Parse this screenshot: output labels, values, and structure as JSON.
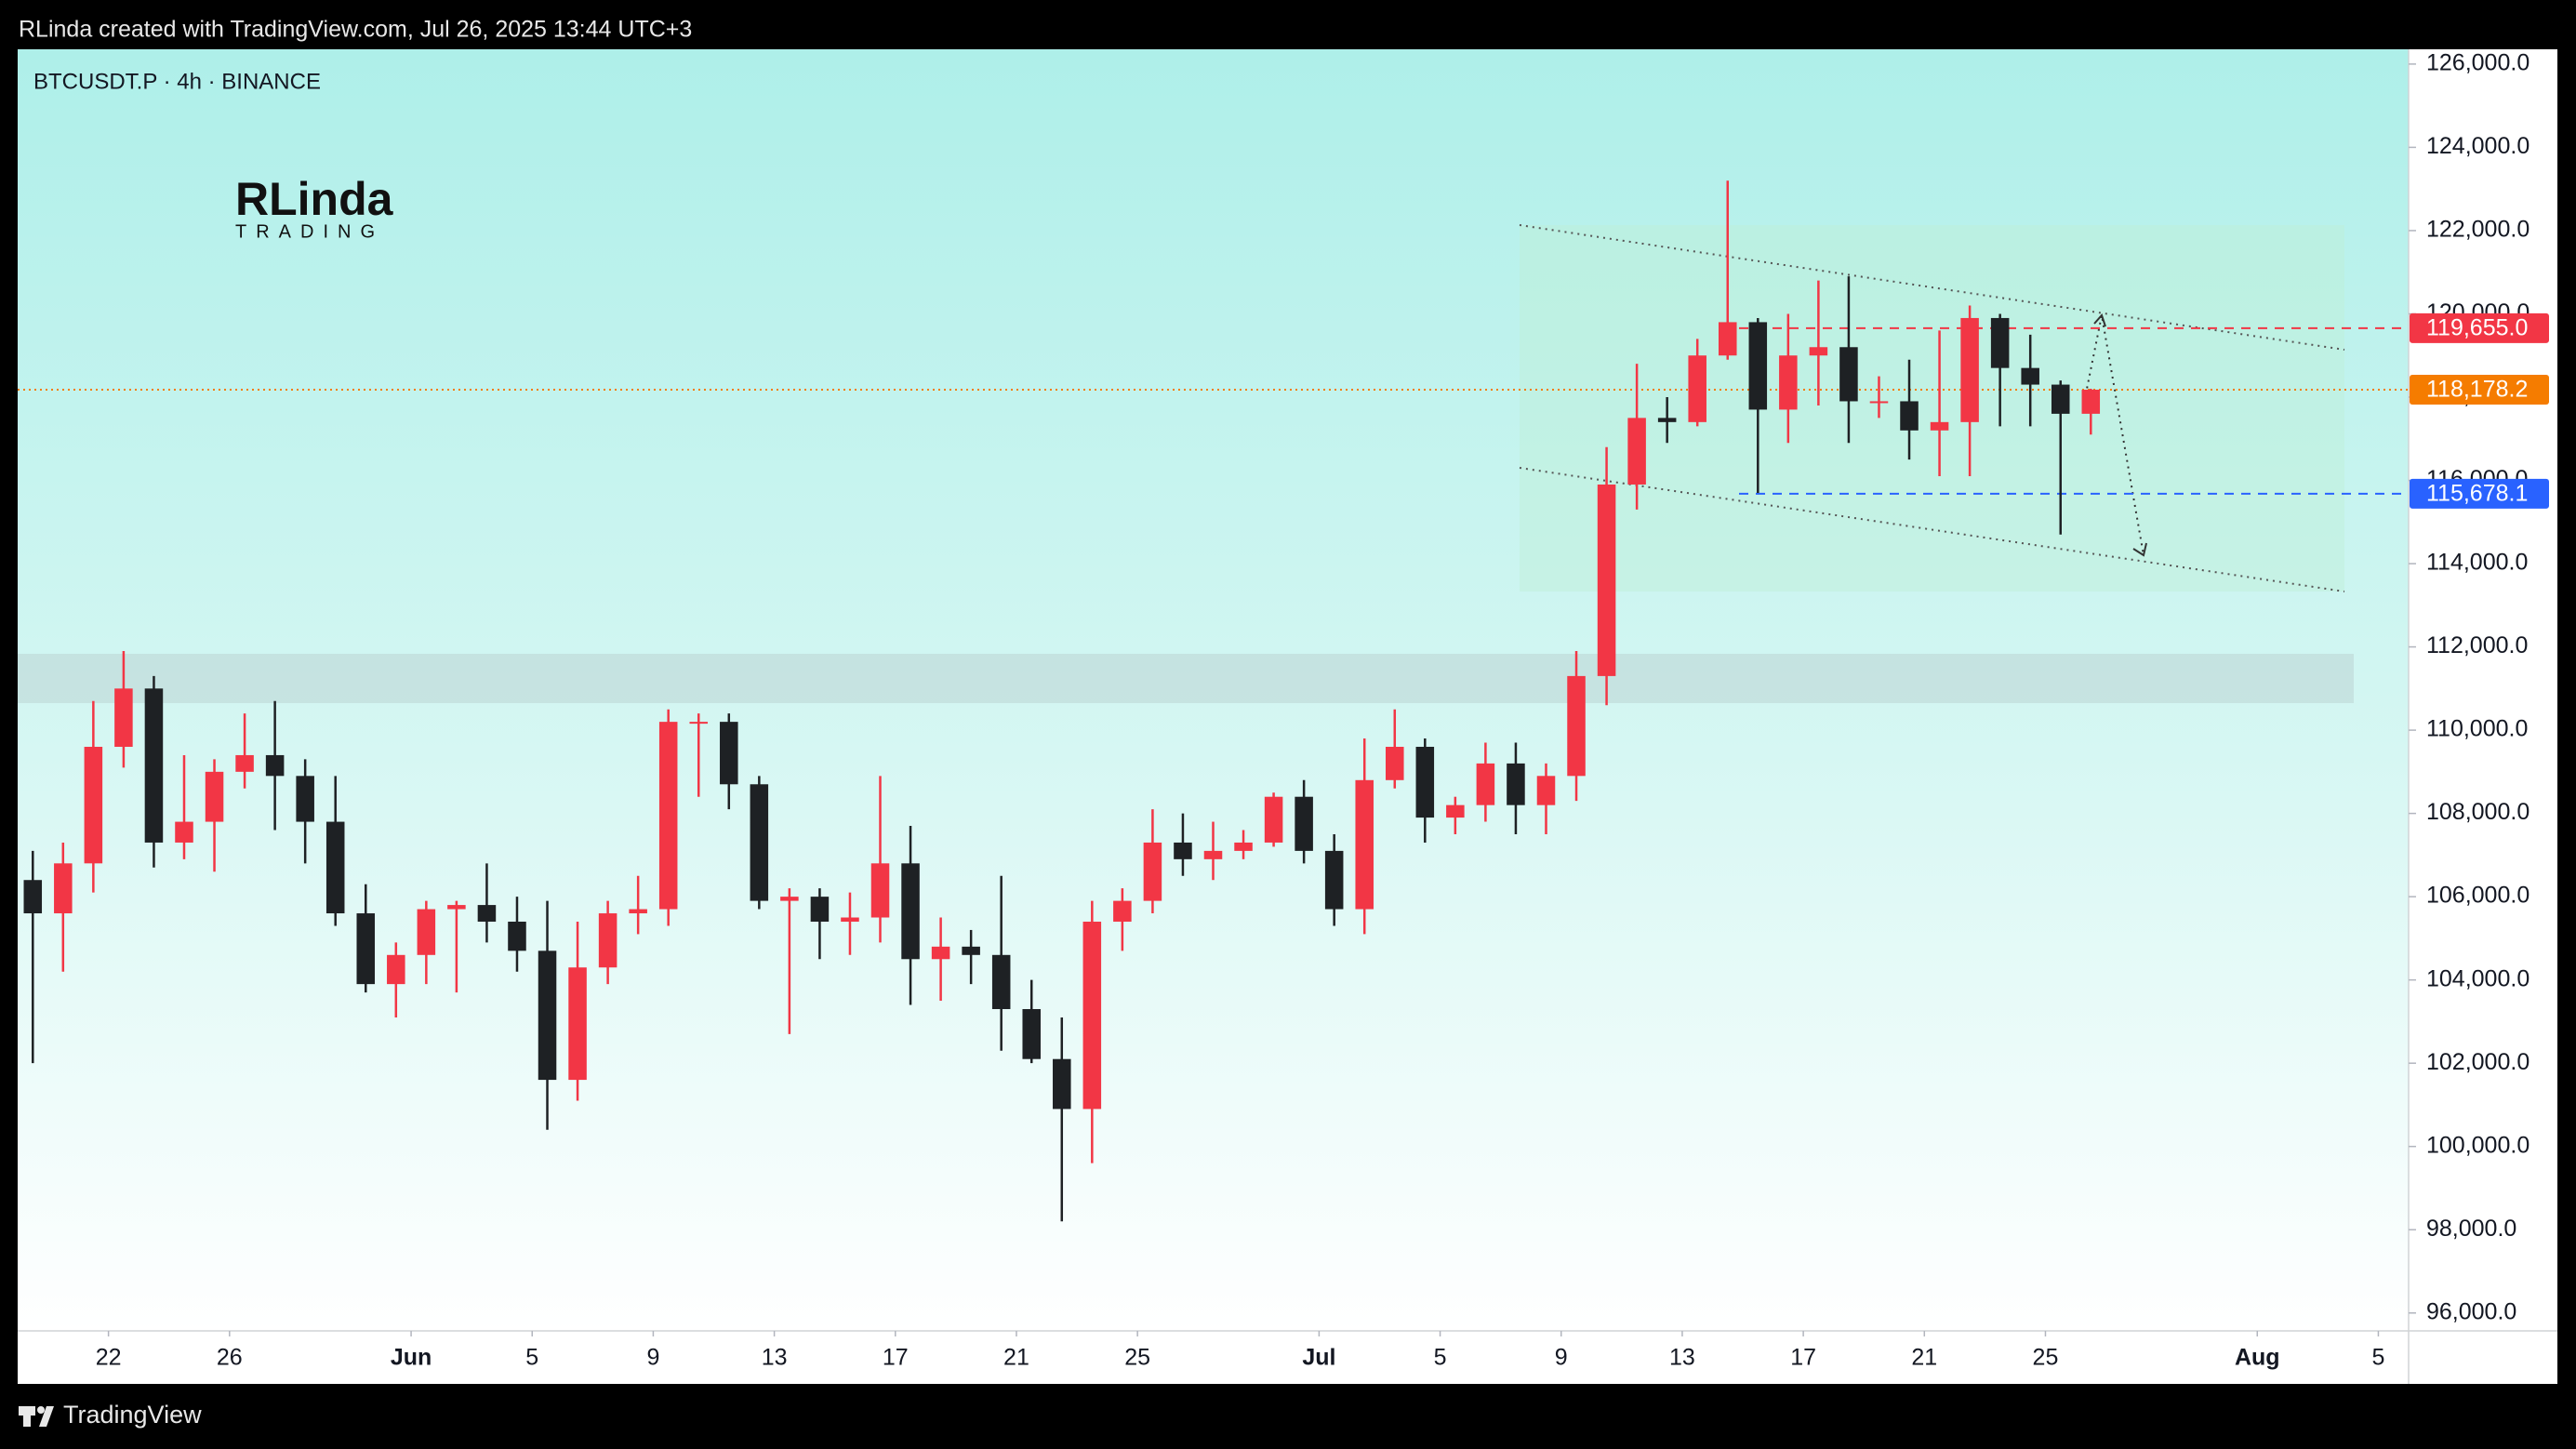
{
  "header": {
    "text": "RLinda created with TradingView.com, Jul 26, 2025 13:44 UTC+3"
  },
  "footer": {
    "brand": "TradingView"
  },
  "logo": {
    "name": "RLinda",
    "tagline": "TRADING"
  },
  "chart_data": {
    "type": "candlestick",
    "title": "BTCUSDT.P · 4h · BINANCE",
    "up_color": "#f23645",
    "down_color": "#1e2124",
    "grid": false,
    "x": [
      "2025-05-19",
      "2025-05-20",
      "2025-05-21",
      "2025-05-22",
      "2025-05-23",
      "2025-05-24",
      "2025-05-25",
      "2025-05-26",
      "2025-05-27",
      "2025-05-28",
      "2025-05-29",
      "2025-05-30",
      "2025-05-31",
      "2025-06-01",
      "2025-06-02",
      "2025-06-03",
      "2025-06-04",
      "2025-06-05",
      "2025-06-06",
      "2025-06-07",
      "2025-06-08",
      "2025-06-09",
      "2025-06-10",
      "2025-06-11",
      "2025-06-12",
      "2025-06-13",
      "2025-06-14",
      "2025-06-15",
      "2025-06-16",
      "2025-06-17",
      "2025-06-18",
      "2025-06-19",
      "2025-06-20",
      "2025-06-21",
      "2025-06-22",
      "2025-06-23",
      "2025-06-24",
      "2025-06-25",
      "2025-06-26",
      "2025-06-27",
      "2025-06-28",
      "2025-06-29",
      "2025-06-30",
      "2025-07-01",
      "2025-07-02",
      "2025-07-03",
      "2025-07-04",
      "2025-07-05",
      "2025-07-06",
      "2025-07-07",
      "2025-07-08",
      "2025-07-09",
      "2025-07-10",
      "2025-07-11",
      "2025-07-12",
      "2025-07-13",
      "2025-07-14",
      "2025-07-15",
      "2025-07-16",
      "2025-07-17",
      "2025-07-18",
      "2025-07-19",
      "2025-07-20",
      "2025-07-21",
      "2025-07-22",
      "2025-07-23",
      "2025-07-24",
      "2025-07-25",
      "2025-07-26"
    ],
    "open": [
      106400,
      105600,
      106800,
      109600,
      111000,
      107300,
      107800,
      109000,
      109400,
      108900,
      107800,
      105600,
      103900,
      104600,
      105700,
      105800,
      105400,
      104700,
      101600,
      104300,
      105600,
      105700,
      110200,
      110200,
      108700,
      105900,
      106000,
      105400,
      105500,
      106800,
      104500,
      104800,
      104600,
      103300,
      102100,
      100900,
      105400,
      105900,
      107300,
      106900,
      107100,
      107300,
      108400,
      107100,
      105700,
      108800,
      109600,
      107900,
      108200,
      109200,
      108200,
      108900,
      111300,
      115900,
      117500,
      117400,
      119000,
      119800,
      117700,
      119000,
      119200,
      117900,
      117900,
      117200,
      117400,
      119900,
      118700,
      118300,
      117600
    ],
    "high": [
      107100,
      107300,
      110700,
      111900,
      111300,
      109400,
      109300,
      110400,
      110700,
      109300,
      108900,
      106300,
      104900,
      105900,
      105900,
      106800,
      106000,
      105900,
      105400,
      105900,
      106500,
      110500,
      110400,
      110400,
      108900,
      106200,
      106200,
      106100,
      108900,
      107700,
      105500,
      105200,
      106500,
      104000,
      103100,
      105900,
      106200,
      108100,
      108000,
      107800,
      107600,
      108500,
      108800,
      107500,
      109800,
      110500,
      109800,
      108400,
      109700,
      109700,
      109200,
      111900,
      116800,
      118800,
      118000,
      119400,
      123200,
      119900,
      120000,
      120800,
      120900,
      118500,
      118900,
      119600,
      120200,
      120000,
      119500,
      118400,
      118200
    ],
    "low": [
      102000,
      104200,
      106100,
      109100,
      106700,
      106900,
      106600,
      108600,
      107600,
      106800,
      105300,
      103700,
      103100,
      103900,
      103700,
      104900,
      104200,
      100400,
      101100,
      103900,
      105100,
      105300,
      108400,
      108100,
      105700,
      102700,
      104500,
      104600,
      104900,
      103400,
      103500,
      103900,
      102300,
      102000,
      98200,
      99600,
      104700,
      105600,
      106500,
      106400,
      106900,
      107200,
      106800,
      105300,
      105100,
      108600,
      107300,
      107500,
      107800,
      107500,
      107500,
      108300,
      110600,
      115300,
      116900,
      117300,
      118900,
      115700,
      116900,
      117800,
      116900,
      117500,
      116500,
      116100,
      116100,
      117300,
      117300,
      114700,
      117100
    ],
    "close": [
      105600,
      106800,
      109600,
      111000,
      107300,
      107800,
      109000,
      109400,
      108900,
      107800,
      105600,
      103900,
      104600,
      105700,
      105800,
      105400,
      104700,
      101600,
      104300,
      105600,
      105700,
      110200,
      110200,
      108700,
      105900,
      106000,
      105400,
      105500,
      106800,
      104500,
      104800,
      104600,
      103300,
      102100,
      100900,
      105400,
      105900,
      107300,
      106900,
      107100,
      107300,
      108400,
      107100,
      105700,
      108800,
      109600,
      107900,
      108200,
      109200,
      108200,
      108900,
      111300,
      115900,
      117500,
      117400,
      119000,
      119800,
      117700,
      119000,
      119200,
      117900,
      117900,
      117200,
      117400,
      119900,
      118700,
      118300,
      117600,
      118178.2
    ],
    "xlim": [
      "2025-05-19",
      "2025-08-06"
    ],
    "xticks": [
      {
        "value": "2025-05-22",
        "label": "22"
      },
      {
        "value": "2025-05-26",
        "label": "26"
      },
      {
        "value": "2025-06-01",
        "label": "Jun"
      },
      {
        "value": "2025-06-05",
        "label": "5"
      },
      {
        "value": "2025-06-09",
        "label": "9"
      },
      {
        "value": "2025-06-13",
        "label": "13"
      },
      {
        "value": "2025-06-17",
        "label": "17"
      },
      {
        "value": "2025-06-21",
        "label": "21"
      },
      {
        "value": "2025-06-25",
        "label": "25"
      },
      {
        "value": "2025-07-01",
        "label": "Jul"
      },
      {
        "value": "2025-07-05",
        "label": "5"
      },
      {
        "value": "2025-07-09",
        "label": "9"
      },
      {
        "value": "2025-07-13",
        "label": "13"
      },
      {
        "value": "2025-07-17",
        "label": "17"
      },
      {
        "value": "2025-07-21",
        "label": "21"
      },
      {
        "value": "2025-07-25",
        "label": "25"
      },
      {
        "value": "2025-08-01",
        "label": "Aug"
      },
      {
        "value": "2025-08-05",
        "label": "5"
      }
    ],
    "ylim": [
      95570,
      126355
    ],
    "yticks": [
      {
        "value": 96000,
        "label": "96,000.0"
      },
      {
        "value": 98000,
        "label": "98,000.0"
      },
      {
        "value": 100000,
        "label": "100,000.0"
      },
      {
        "value": 102000,
        "label": "102,000.0"
      },
      {
        "value": 104000,
        "label": "104,000.0"
      },
      {
        "value": 106000,
        "label": "106,000.0"
      },
      {
        "value": 108000,
        "label": "108,000.0"
      },
      {
        "value": 110000,
        "label": "110,000.0"
      },
      {
        "value": 112000,
        "label": "112,000.0"
      },
      {
        "value": 114000,
        "label": "114,000.0"
      },
      {
        "value": 116000,
        "label": "116,000.0"
      },
      {
        "value": 118000,
        "label": "118,000.0"
      },
      {
        "value": 120000,
        "label": "120,000.0"
      },
      {
        "value": 122000,
        "label": "122,000.0"
      },
      {
        "value": 124000,
        "label": "124,000.0"
      },
      {
        "value": 126000,
        "label": "126,000.0"
      }
    ],
    "price_lines": [
      {
        "value": 119655.0,
        "label": "119,655.0",
        "color": "#f23645",
        "style": "dashed"
      },
      {
        "value": 118178.2,
        "label": "118,178.2",
        "color": "#f57c00",
        "style": "dotted"
      },
      {
        "value": 115678.1,
        "label": "115,678.1",
        "color": "#2962ff",
        "style": "dashed"
      }
    ]
  }
}
